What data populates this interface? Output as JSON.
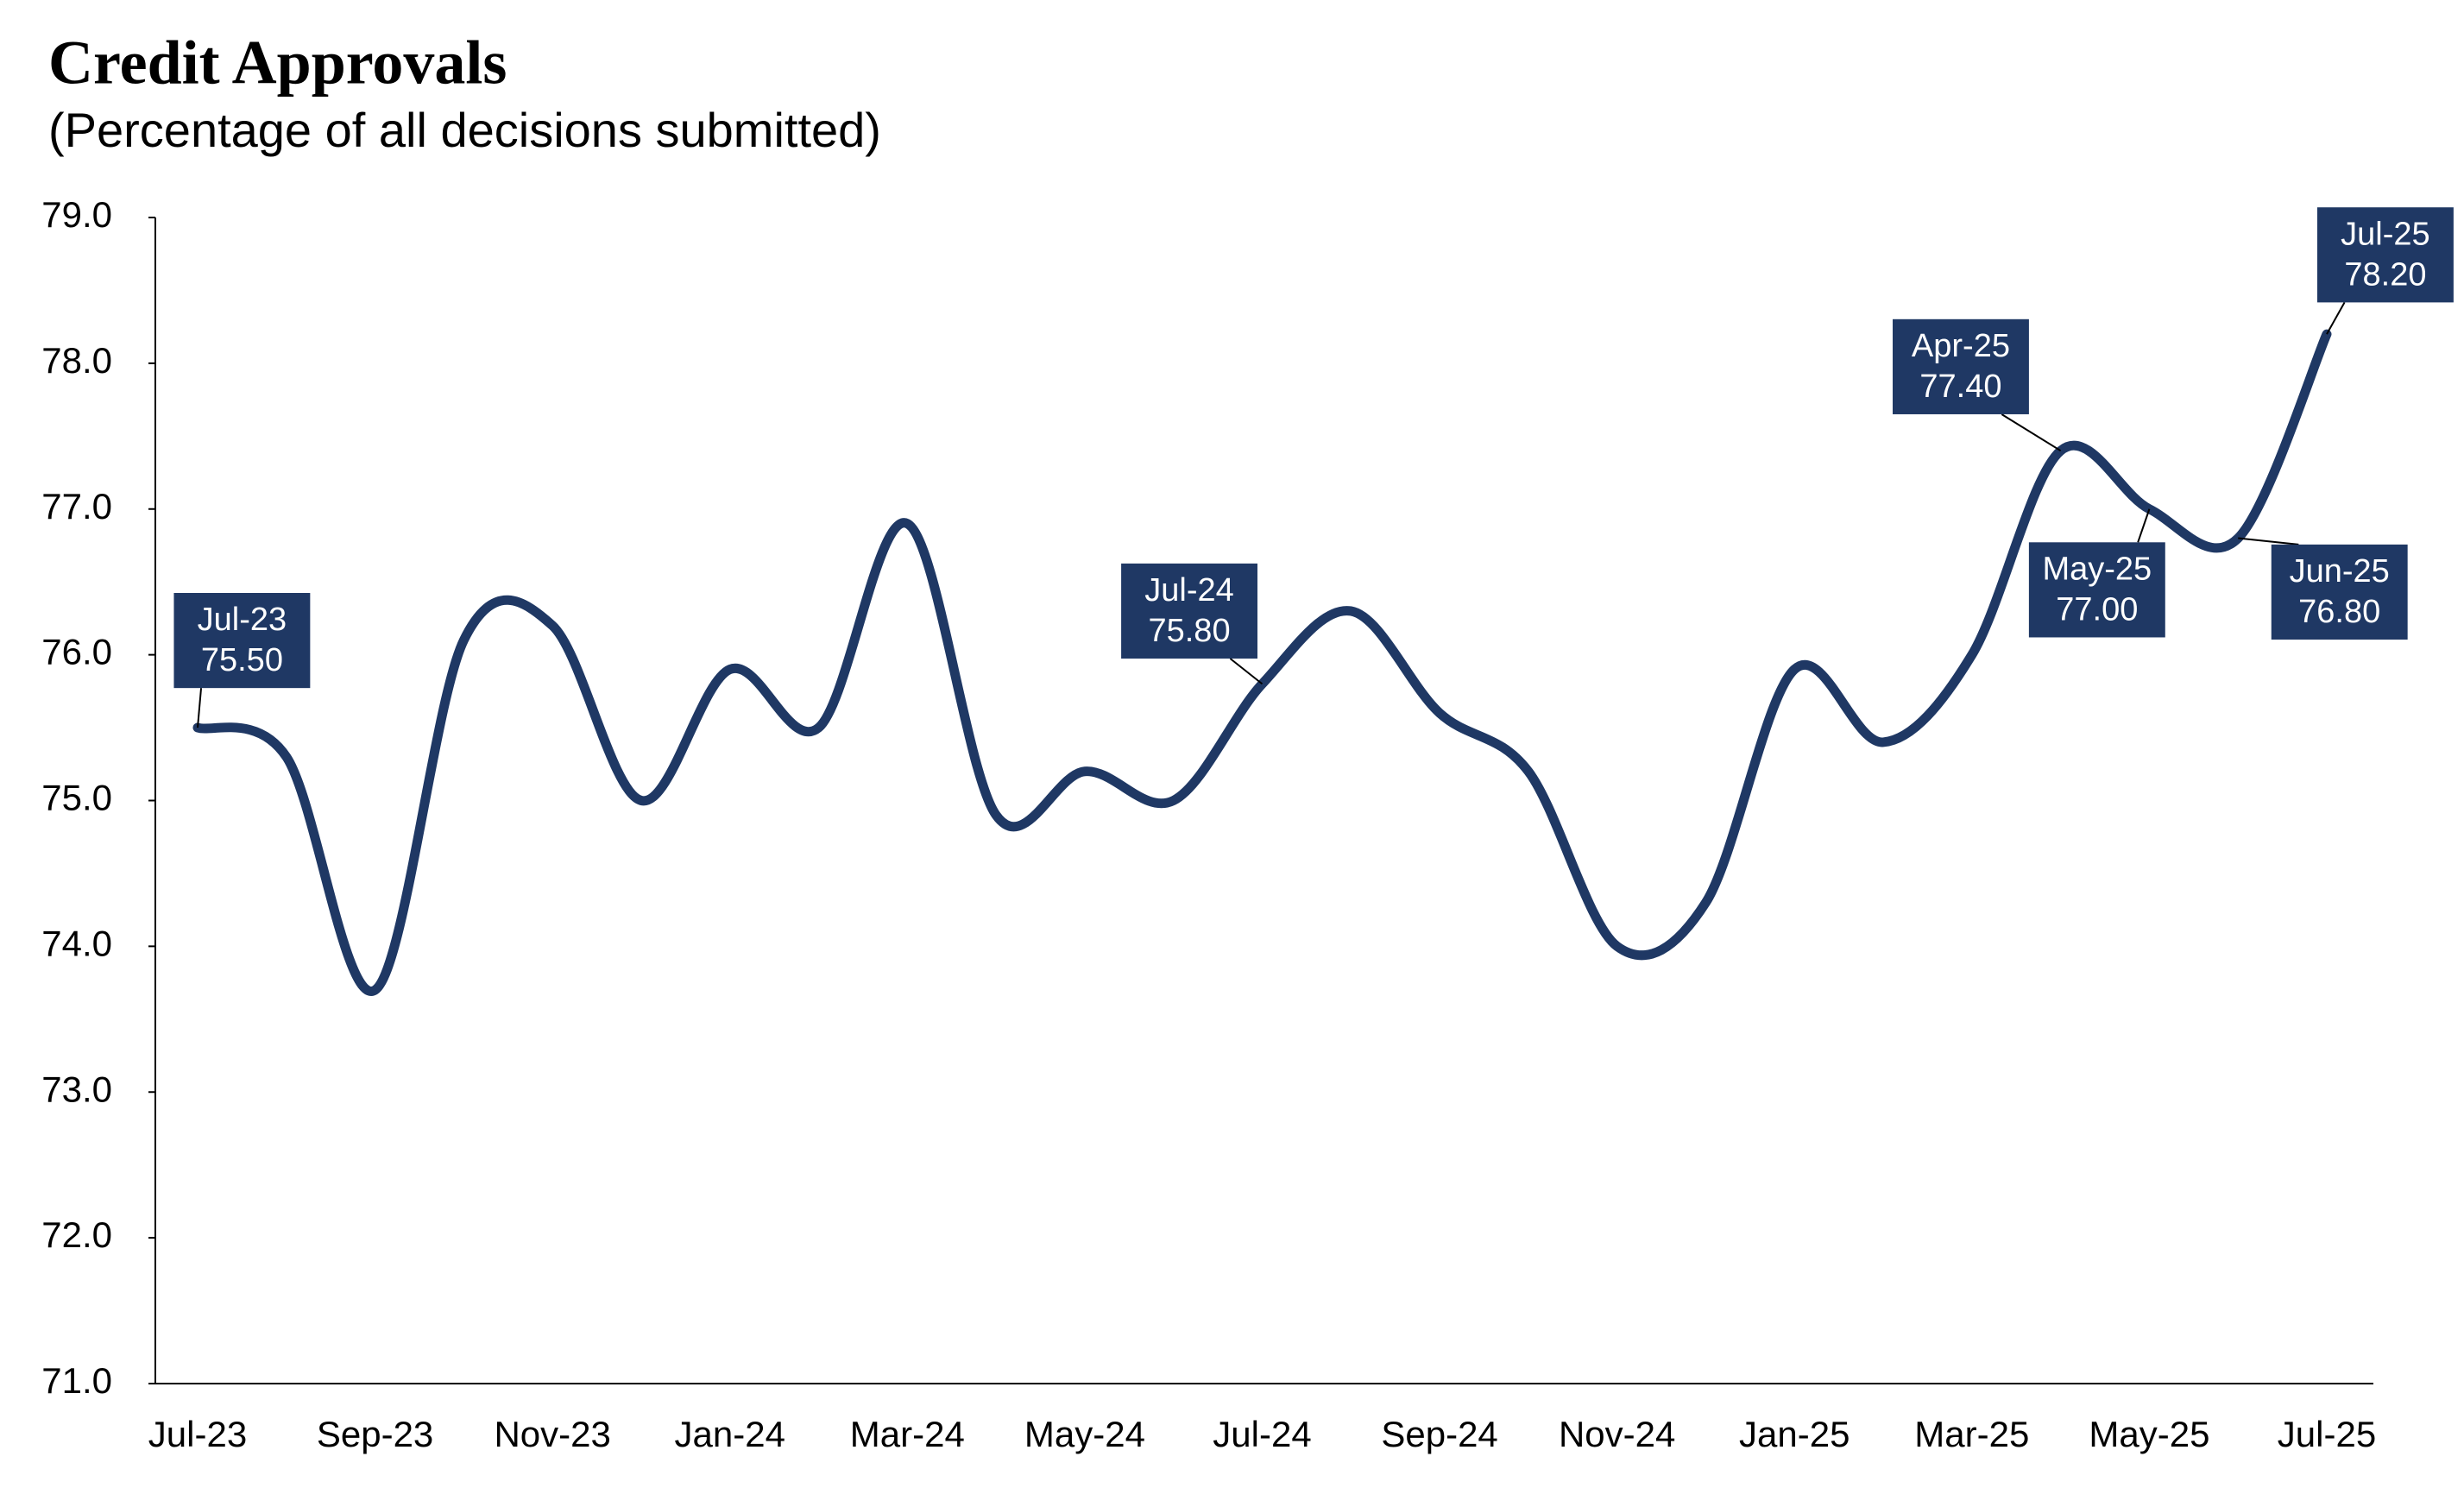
{
  "chart_data": {
    "type": "line",
    "title": "Credit Approvals",
    "subtitle": "(Percentage of all decisions submitted)",
    "categories": [
      "Jul-23",
      null,
      "Sep-23",
      null,
      "Nov-23",
      null,
      "Jan-24",
      null,
      "Mar-24",
      null,
      "May-24",
      null,
      "Jul-24",
      null,
      "Sep-24",
      null,
      "Nov-24",
      null,
      "Jan-25",
      null,
      "Mar-25",
      null,
      "May-25",
      null,
      "Jul-25"
    ],
    "series": [
      {
        "name": "Credit approvals",
        "color": "#1f3864",
        "values": [
          75.5,
          75.3,
          73.7,
          76.1,
          76.2,
          75.0,
          75.9,
          75.5,
          76.9,
          74.9,
          75.2,
          75.0,
          75.8,
          76.3,
          75.6,
          75.2,
          74.0,
          74.3,
          75.9,
          75.4,
          76.0,
          77.4,
          77.0,
          76.8,
          78.2
        ],
        "point_labels": [
          "Jul-23",
          null,
          null,
          null,
          null,
          null,
          null,
          null,
          null,
          null,
          null,
          null,
          "Jul-24",
          null,
          null,
          null,
          null,
          null,
          null,
          null,
          null,
          "Apr-25",
          "May-25",
          "Jun-25",
          "Jul-25"
        ],
        "value_labels": [
          "75.50",
          null,
          null,
          null,
          null,
          null,
          null,
          null,
          null,
          null,
          null,
          null,
          "75.80",
          null,
          null,
          null,
          null,
          null,
          null,
          null,
          null,
          "77.40",
          "77.00",
          "76.80",
          "78.20"
        ]
      }
    ],
    "ylim": [
      71,
      79
    ],
    "yticks": [
      {
        "value": 71,
        "label": "71.0"
      },
      {
        "value": 72,
        "label": "72.0"
      },
      {
        "value": 73,
        "label": "73.0"
      },
      {
        "value": 74,
        "label": "74.0"
      },
      {
        "value": 75,
        "label": "75.0"
      },
      {
        "value": 76,
        "label": "76.0"
      },
      {
        "value": 77,
        "label": "77.0"
      },
      {
        "value": 78,
        "label": "78.0"
      },
      {
        "value": 79,
        "label": "79.0"
      }
    ],
    "grid": false
  }
}
